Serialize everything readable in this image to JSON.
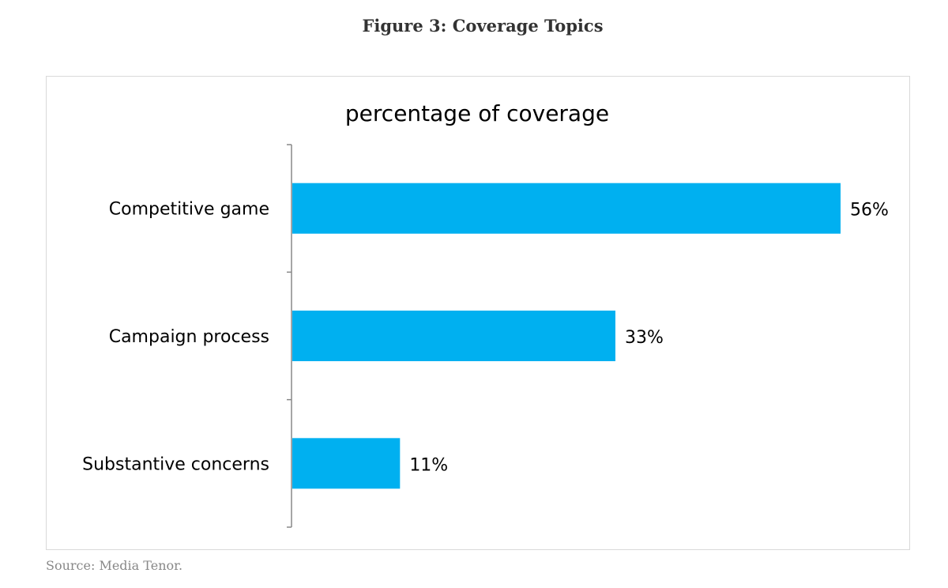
{
  "figure_title": "Figure 3: Coverage Topics",
  "source_note": "Source: Media Tenor.",
  "chart_data": {
    "type": "bar",
    "orientation": "horizontal",
    "title": "percentage of coverage",
    "categories": [
      "Competitive game",
      "Campaign process",
      "Substantive concerns"
    ],
    "values": [
      56,
      33,
      11
    ],
    "value_labels": [
      "56%",
      "33%",
      "11%"
    ],
    "xlim": [
      0,
      56
    ],
    "grid": false,
    "legend": "none",
    "bar_color": "#00b0f0"
  }
}
